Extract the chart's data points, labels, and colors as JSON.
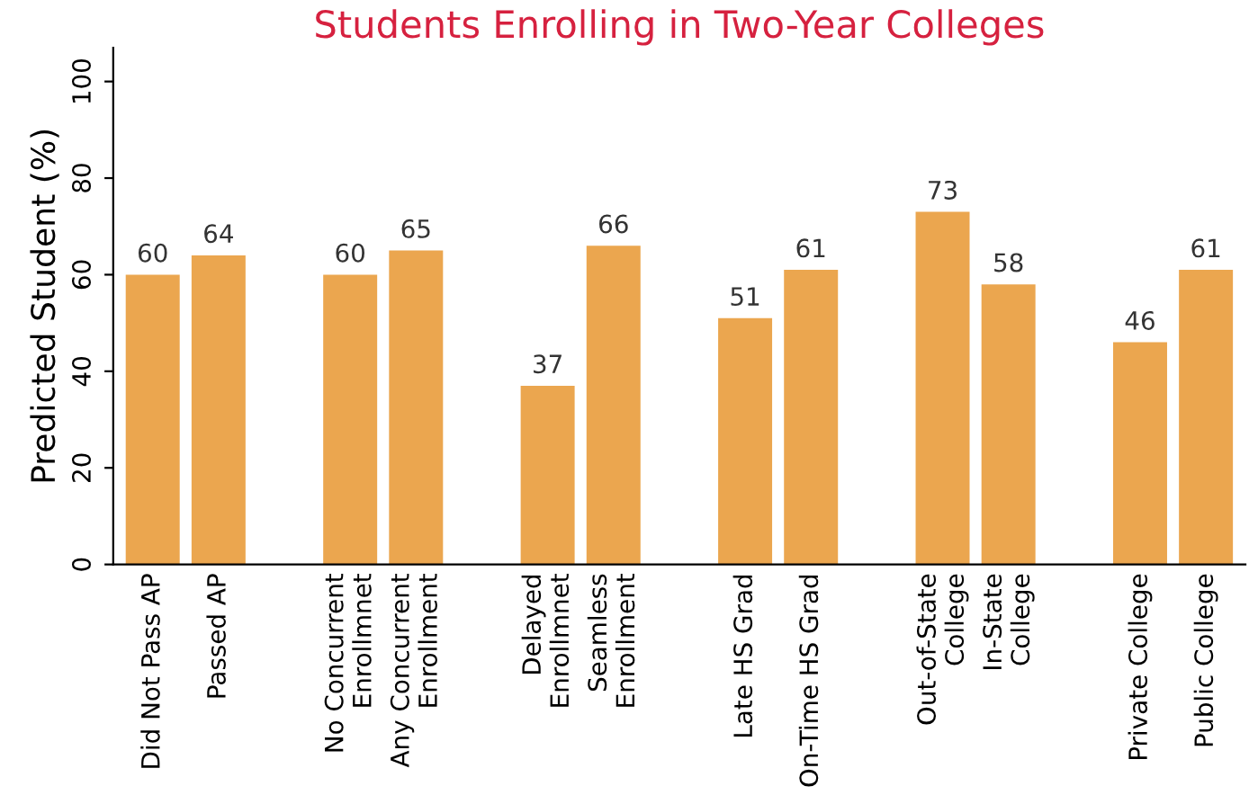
{
  "chart_data": {
    "type": "bar",
    "title": "Students Enrolling in Two-Year Colleges",
    "ylabel": "Predicted Student (%)",
    "categories": [
      "Did Not Pass AP",
      "Passed AP",
      null,
      "No Concurrent\nEnrollmnet",
      "Any Concurrent\nEnrollment",
      null,
      "Delayed\nEnrollmnet",
      "Seamless\nEnrollment",
      null,
      "Late HS Grad",
      "On-Time HS Grad",
      null,
      "Out-of-State\nCollege",
      "In-State\nCollege",
      null,
      "Private College",
      "Public College"
    ],
    "values": [
      60,
      64,
      null,
      60,
      65,
      null,
      37,
      66,
      null,
      51,
      61,
      null,
      73,
      58,
      null,
      46,
      61
    ],
    "color": "#eba64f",
    "data_labels": true,
    "ylim": [
      0,
      107
    ],
    "yticks": [
      0,
      20,
      40,
      60,
      80,
      100
    ],
    "grid": false,
    "legend": false
  }
}
